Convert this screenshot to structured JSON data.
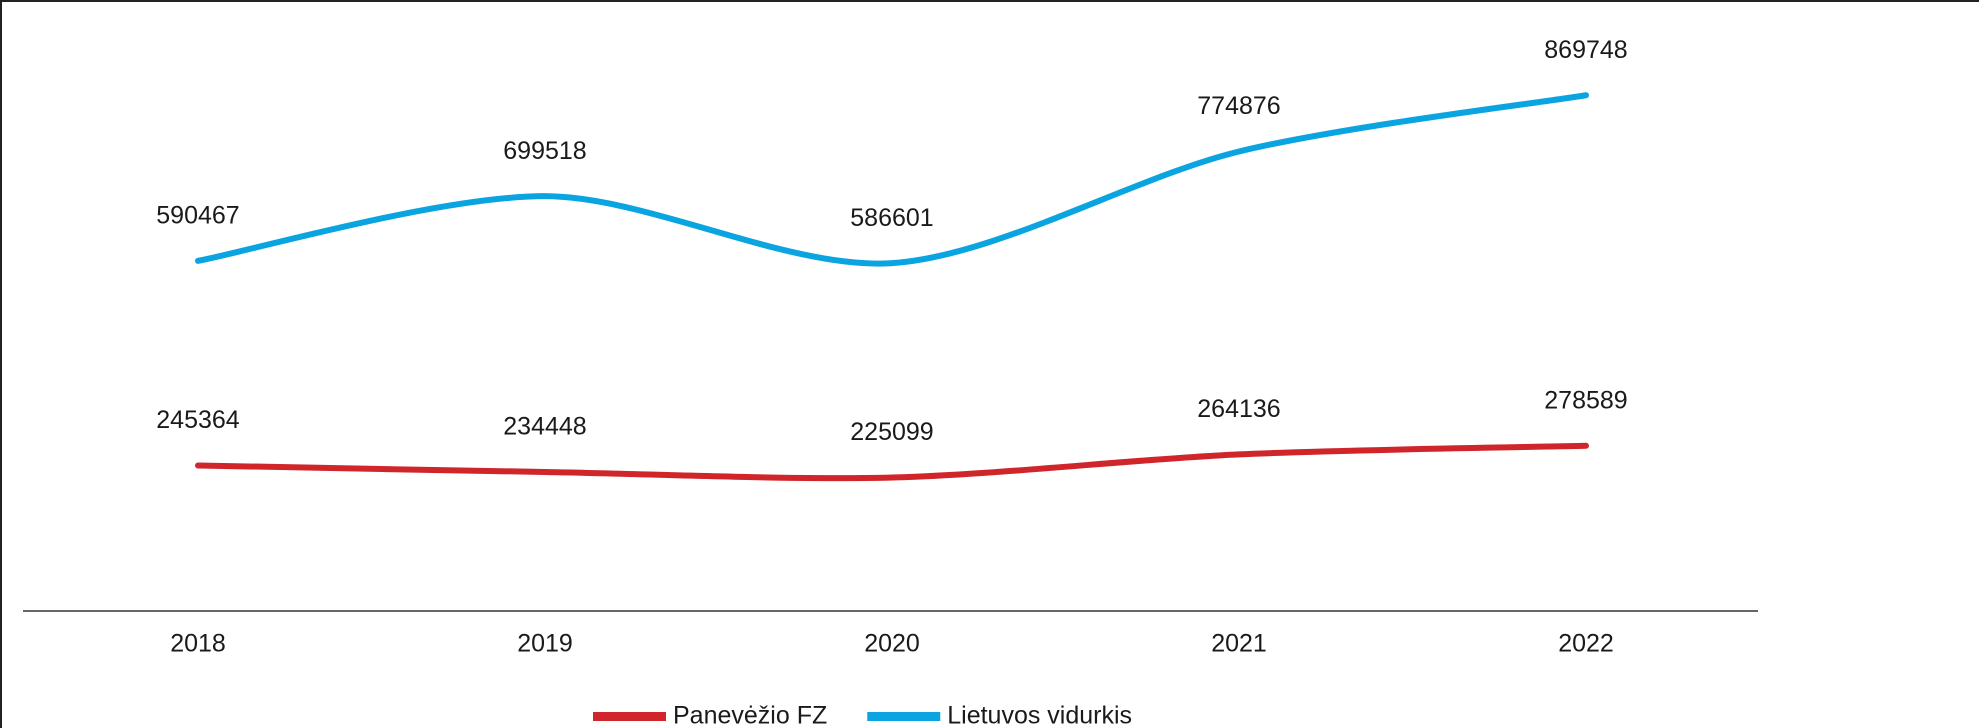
{
  "chart_data": {
    "type": "line",
    "categories": [
      "2018",
      "2019",
      "2020",
      "2021",
      "2022"
    ],
    "series": [
      {
        "name": "Panevėžio FZ",
        "color": "#d0262b",
        "values": [
          245364,
          234448,
          225099,
          264136,
          278589
        ]
      },
      {
        "name": "Lietuvos vidurkis",
        "color": "#0aa5e0",
        "values": [
          590467,
          699518,
          586601,
          774876,
          869748
        ]
      }
    ],
    "ylim": [
      0,
      1000000
    ],
    "grid": false,
    "legend": "bottom"
  }
}
